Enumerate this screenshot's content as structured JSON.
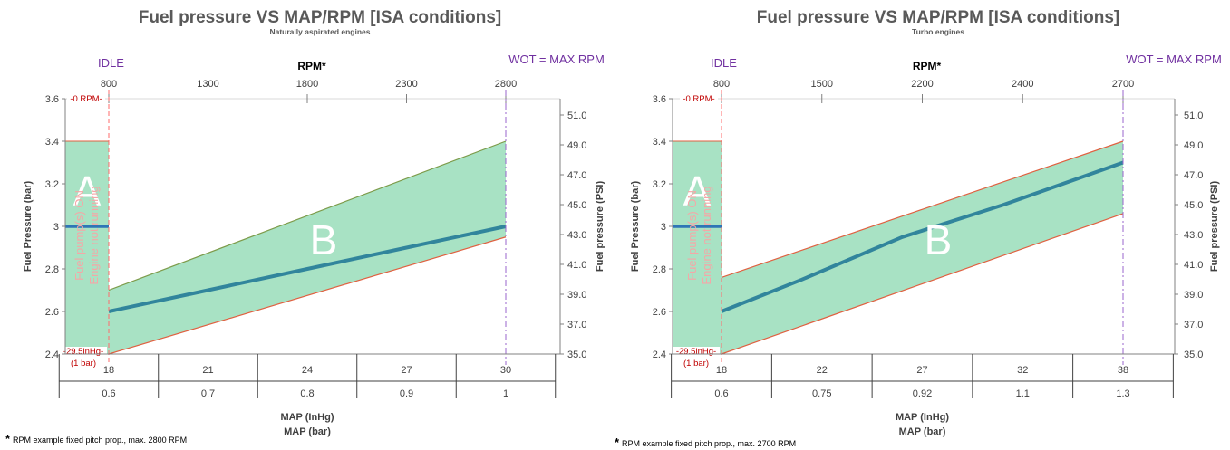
{
  "chart_data": [
    {
      "type": "line",
      "title": "Fuel pressure VS MAP/RPM [ISA conditions]",
      "subtitle": "Naturally aspirated engines",
      "ylabel": "Fuel Pressure (bar)",
      "y2label": "Fuel pressure (PSI)",
      "ylim": [
        2.4,
        3.6
      ],
      "y_ticks": [
        "3.6",
        "3.4",
        "3.2",
        "3",
        "2.8",
        "2.6",
        "2.4"
      ],
      "y2_ticks": [
        "51.0",
        "49.0",
        "47.0",
        "45.0",
        "43.0",
        "41.0",
        "39.0",
        "37.0",
        "35.0"
      ],
      "rpm_label": "RPM*",
      "rpm_ticks": [
        "800",
        "1300",
        "1800",
        "2300",
        "2800"
      ],
      "map_inhg_label": "MAP (InHg)",
      "map_inhg_ticks": [
        "18",
        "21",
        "24",
        "27",
        "30"
      ],
      "map_bar_label": "MAP (bar)",
      "map_bar_ticks": [
        "0.6",
        "0.7",
        "0.8",
        "0.9",
        "1"
      ],
      "x": [
        18,
        21,
        24,
        27,
        30
      ],
      "series": [
        {
          "values": [
            2.6,
            2.7,
            2.8,
            2.9,
            3.0
          ]
        }
      ],
      "band_B": {
        "lower": [
          2.4,
          2.95
        ],
        "upper": [
          2.7,
          3.4
        ]
      },
      "band_A": {
        "lower": 3.0,
        "upper": 3.4,
        "idle_line": 3.0
      },
      "idle_label": "IDLE",
      "wot_label": "WOT = MAX RPM",
      "zero_rpm_label": "-0 RPM-",
      "vac_label": "-29.5inHg-",
      "vac_sub": "(1 bar)",
      "zone_a": "A",
      "zone_b": "B",
      "pump_line1": "Fuel pump(s) ON",
      "pump_line2": "Engine not running",
      "footnote_star": "*",
      "footnote": "RPM example fixed pitch prop., max. 2800 RPM"
    },
    {
      "type": "line",
      "title": "Fuel pressure VS MAP/RPM [ISA conditions]",
      "subtitle": "Turbo engines",
      "ylabel": "Fuel Pressure (bar)",
      "y2label": "Fuel pressure (PSI)",
      "ylim": [
        2.4,
        3.6
      ],
      "y_ticks": [
        "3.6",
        "3.4",
        "3.2",
        "3",
        "2.8",
        "2.6",
        "2.4"
      ],
      "y2_ticks": [
        "51.0",
        "49.0",
        "47.0",
        "45.0",
        "43.0",
        "41.0",
        "39.0",
        "37.0",
        "35.0"
      ],
      "rpm_label": "RPM*",
      "rpm_ticks": [
        "800",
        "1500",
        "2200",
        "2400",
        "2700"
      ],
      "map_inhg_label": "MAP (InHg)",
      "map_inhg_ticks": [
        "18",
        "22",
        "27",
        "32",
        "38"
      ],
      "map_bar_label": "MAP (bar)",
      "map_bar_ticks": [
        "0.6",
        "0.75",
        "0.92",
        "1.1",
        "1.3"
      ],
      "x": [
        18,
        22,
        27,
        32,
        38
      ],
      "series": [
        {
          "values": [
            2.6,
            2.75,
            2.95,
            3.1,
            3.3
          ]
        }
      ],
      "band_B": {
        "lower": [
          2.4,
          3.06
        ],
        "upper": [
          2.76,
          3.4
        ]
      },
      "band_A": {
        "lower": 3.0,
        "upper": 3.4,
        "idle_line": 3.0
      },
      "idle_label": "IDLE",
      "wot_label": "WOT = MAX RPM",
      "zero_rpm_label": "-0 RPM-",
      "vac_label": "-29.5inHg-",
      "vac_sub": "(1 bar)",
      "zone_a": "A",
      "zone_b": "B",
      "pump_line1": "Fuel pump(s) ON",
      "pump_line2": "Engine not running",
      "footnote_star": "*",
      "footnote": "RPM example fixed pitch prop., max. 2700 RPM"
    }
  ],
  "colors": {
    "band_fill": "#a8e2c4",
    "band_edge_top": "#7d9b4a",
    "band_edge_bottom": "#e06040",
    "series_line": "#31859c",
    "idle_line": "#2e75b6",
    "idle_marker": "#ff6b6b",
    "wot_marker": "#9966cc",
    "axis": "#808080"
  }
}
